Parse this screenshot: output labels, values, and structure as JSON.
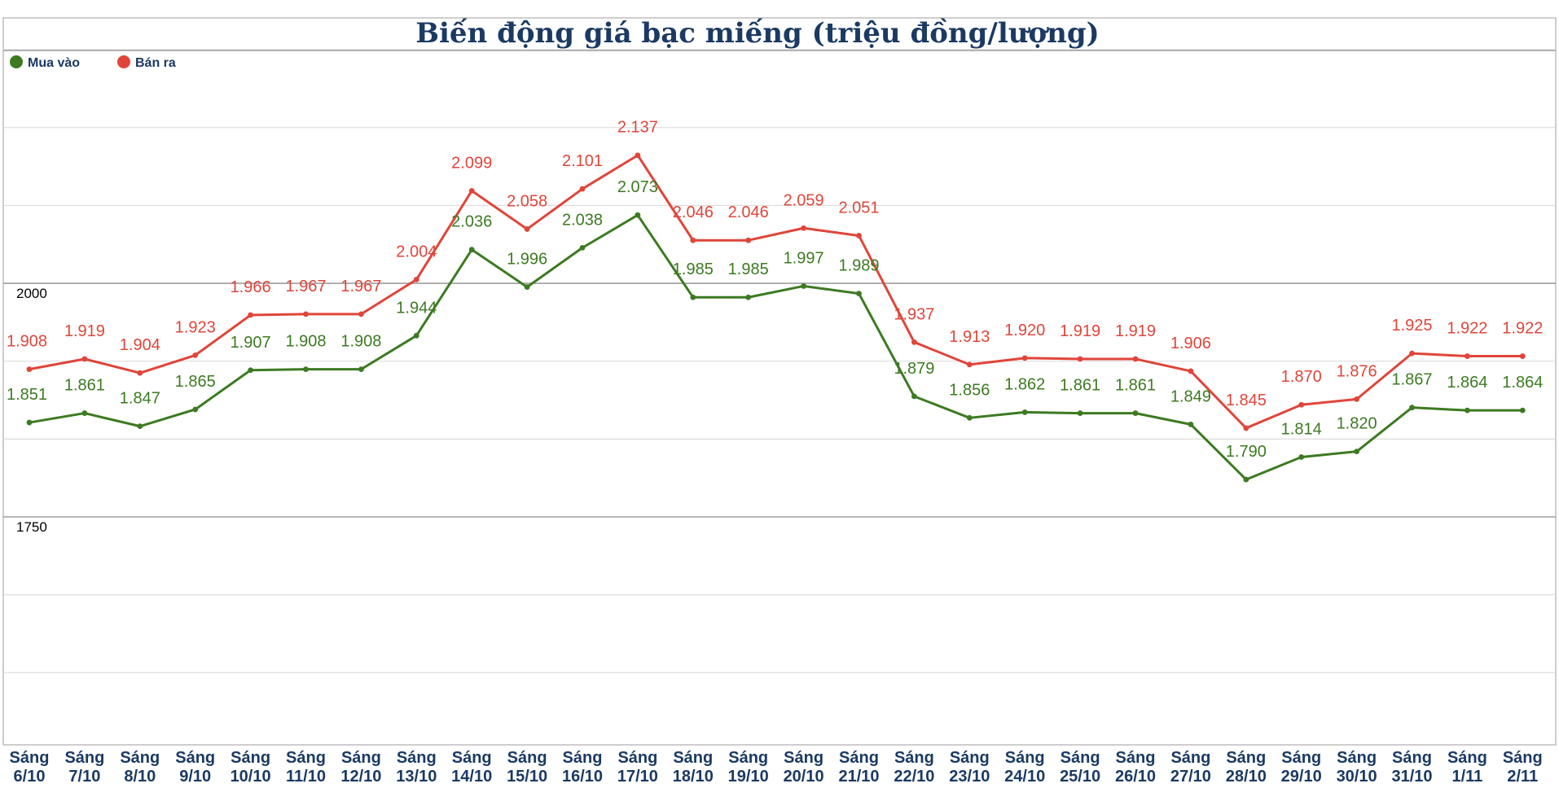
{
  "chart_data": {
    "type": "line",
    "title": "Biến động giá bạc miếng (triệu đồng/lượng)",
    "categories": [
      [
        "Sáng",
        "6/10"
      ],
      [
        "Sáng",
        "7/10"
      ],
      [
        "Sáng",
        "8/10"
      ],
      [
        "Sáng",
        "9/10"
      ],
      [
        "Sáng",
        "10/10"
      ],
      [
        "Sáng",
        "11/10"
      ],
      [
        "Sáng",
        "12/10"
      ],
      [
        "Sáng",
        "13/10"
      ],
      [
        "Sáng",
        "14/10"
      ],
      [
        "Sáng",
        "15/10"
      ],
      [
        "Sáng",
        "16/10"
      ],
      [
        "Sáng",
        "17/10"
      ],
      [
        "Sáng",
        "18/10"
      ],
      [
        "Sáng",
        "19/10"
      ],
      [
        "Sáng",
        "20/10"
      ],
      [
        "Sáng",
        "21/10"
      ],
      [
        "Sáng",
        "22/10"
      ],
      [
        "Sáng",
        "23/10"
      ],
      [
        "Sáng",
        "24/10"
      ],
      [
        "Sáng",
        "25/10"
      ],
      [
        "Sáng",
        "26/10"
      ],
      [
        "Sáng",
        "27/10"
      ],
      [
        "Sáng",
        "28/10"
      ],
      [
        "Sáng",
        "29/10"
      ],
      [
        "Sáng",
        "30/10"
      ],
      [
        "Sáng",
        "31/10"
      ],
      [
        "Sáng",
        "1/11"
      ],
      [
        "Sáng",
        "2/11"
      ]
    ],
    "series": [
      {
        "name": "Bán ra",
        "color": "#e0453a",
        "values": [
          1908,
          1919,
          1904,
          1923,
          1966,
          1967,
          1967,
          2004,
          2099,
          2058,
          2101,
          2137,
          2046,
          2046,
          2059,
          2051,
          1937,
          1913,
          1920,
          1919,
          1919,
          1906,
          1845,
          1870,
          1876,
          1925,
          1922,
          1922
        ],
        "labels": [
          "1.908",
          "1.919",
          "1.904",
          "1.923",
          "1.966",
          "1.967",
          "1.967",
          "2.004",
          "2.099",
          "2.058",
          "2.101",
          "2.137",
          "2.046",
          "2.046",
          "2.059",
          "2.051",
          "1.937",
          "1.913",
          "1.920",
          "1.919",
          "1.919",
          "1.906",
          "1.845",
          "1.870",
          "1.876",
          "1.925",
          "1.922",
          "1.922"
        ]
      },
      {
        "name": "Mua vào",
        "color": "#3d7a22",
        "values": [
          1851,
          1861,
          1847,
          1865,
          1907,
          1908,
          1908,
          1944,
          2036,
          1996,
          2038,
          2073,
          1985,
          1985,
          1997,
          1989,
          1879,
          1856,
          1862,
          1861,
          1861,
          1849,
          1790,
          1814,
          1820,
          1867,
          1864,
          1864
        ],
        "labels": [
          "1.851",
          "1.861",
          "1.847",
          "1.865",
          "1.907",
          "1.908",
          "1.908",
          "1.944",
          "2.036",
          "1.996",
          "2.038",
          "2.073",
          "1.985",
          "1.985",
          "1.997",
          "1.989",
          "1.879",
          "1.856",
          "1.862",
          "1.861",
          "1.861",
          "1.849",
          "1.790",
          "1.814",
          "1.820",
          "1.867",
          "1.864",
          "1.864"
        ]
      }
    ],
    "legend": [
      {
        "name": "Mua vào",
        "color": "#3d7a22"
      },
      {
        "name": "Bán ra",
        "color": "#e0453a"
      }
    ],
    "y_ticks": [
      {
        "value": 2000,
        "label": "2000"
      },
      {
        "value": 1750,
        "label": "1750"
      }
    ],
    "ylim": [
      1500,
      2250
    ],
    "grid_step": 83.33,
    "grid": true,
    "legend_position": "top-left"
  }
}
